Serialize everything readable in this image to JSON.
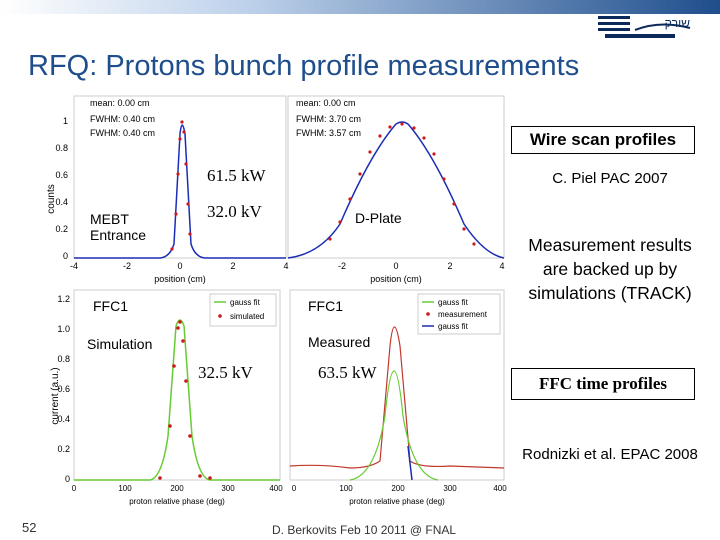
{
  "slide": {
    "title": "RFQ: Protons bunch profile measurements",
    "page_number": "52",
    "footer": "D. Berkovits Feb 10 2011 @ FNAL"
  },
  "colors": {
    "title": "#1f4e8c",
    "header_band": "#1f4e8c",
    "fit_line": "#1a2db5",
    "data_points": "#cc1a1a",
    "gauss_fit_ffc": "#66cc33",
    "measured_curve": "#c0392b"
  },
  "logo": {
    "icon": "soreq-logo-icon",
    "text": "שורק"
  },
  "annotations": {
    "wire_scan": "Wire scan profiles",
    "ffc_time": "FFC time profiles",
    "piel": "C. Piel PAC 2007",
    "measurement_backed": "Measurement results are backed up by simulations (TRACK)",
    "rodnizki": "Rodnizki et al. EPAC 2008"
  },
  "wire_scan": {
    "y_label": "counts",
    "y_ticks": [
      "0",
      "0.2",
      "0.4",
      "0.6",
      "0.8",
      "1"
    ],
    "left": {
      "stats": [
        "mean: 0.00 cm",
        "FWHM: 0.40 cm",
        "FWHM: 0.40 cm"
      ],
      "x_ticks": [
        "-4",
        "-2",
        "0",
        "2",
        "4"
      ],
      "x_label": "position (cm)",
      "location": "MEBT Entrance",
      "power": "61.5 kW"
    },
    "right": {
      "stats": [
        "mean: 0.00 cm",
        "FWHM: 3.70 cm",
        "FWHM: 3.57 cm"
      ],
      "x_ticks": [
        "-2",
        "0",
        "2",
        "4"
      ],
      "x_label": "position (cm)",
      "location": "D-Plate",
      "power": "32.0 kV"
    }
  },
  "ffc": {
    "y_label": "current (a.u.)",
    "y_ticks": [
      "0",
      "0.2",
      "0.4",
      "0.6",
      "0.8",
      "1.0",
      "1.2"
    ],
    "x_label": "proton relative phase (deg)",
    "left": {
      "title": "FFC1",
      "mode": "Simulation",
      "power": "32.5 kV",
      "legend": [
        "gauss fit",
        "simulated"
      ],
      "x_ticks": [
        "0",
        "100",
        "200",
        "300",
        "400"
      ]
    },
    "right": {
      "title": "FFC1",
      "mode": "Measured",
      "power": "63.5 kW",
      "legend": [
        "gauss fit",
        "measurement",
        "gauss fit"
      ],
      "x_ticks": [
        "0",
        "100",
        "200",
        "300",
        "400"
      ]
    }
  }
}
